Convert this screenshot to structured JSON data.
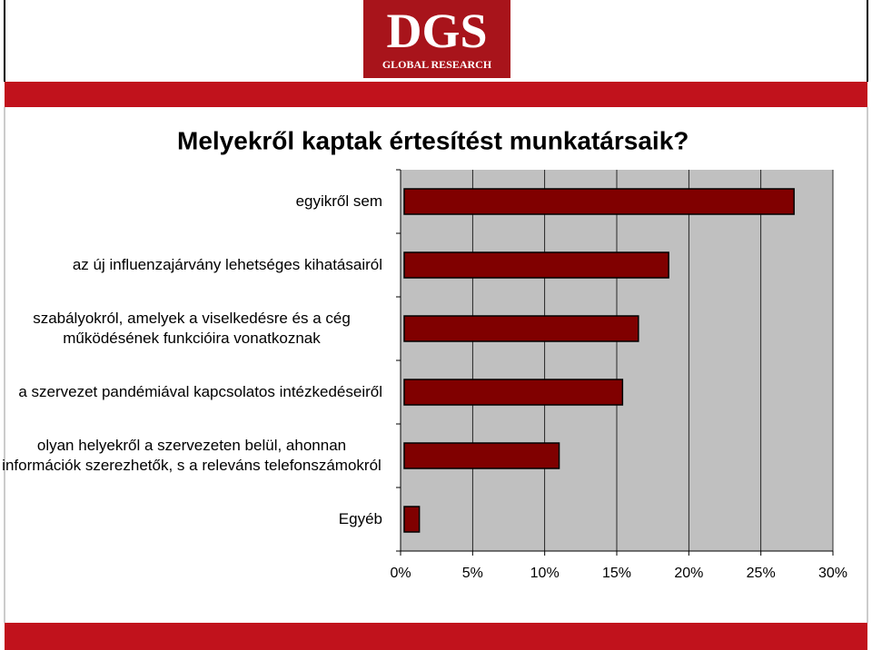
{
  "header": {
    "logo_title": "DGS",
    "logo_subtitle": "GLOBAL RESEARCH"
  },
  "chart_data": {
    "type": "hbar",
    "title": "Melyekről kaptak értesítést munkatársaik?",
    "categories": [
      "egyikről sem",
      "az új influenzajárvány lehetséges kihatásairól",
      "szabályokról, amelyek a viselkedésre és a cég működésének funkcióira vonatkoznak",
      "a szervezet pandémiával kapcsolatos intézkedéseiről",
      "olyan helyekről a szervezeten belül, ahonnan információk szerezhetők, s a releváns telefonszámokról",
      "Egyéb"
    ],
    "values": [
      27.3,
      18.6,
      16.5,
      15.4,
      11.0,
      1.3
    ],
    "color": "#800000",
    "xlim": [
      0,
      30
    ],
    "xticks": [
      {
        "value": 0,
        "label": "0%"
      },
      {
        "value": 5,
        "label": "5%"
      },
      {
        "value": 10,
        "label": "10%"
      },
      {
        "value": 15,
        "label": "15%"
      },
      {
        "value": 20,
        "label": "20%"
      },
      {
        "value": 25,
        "label": "25%"
      },
      {
        "value": 30,
        "label": "30%"
      }
    ],
    "grid": true
  }
}
